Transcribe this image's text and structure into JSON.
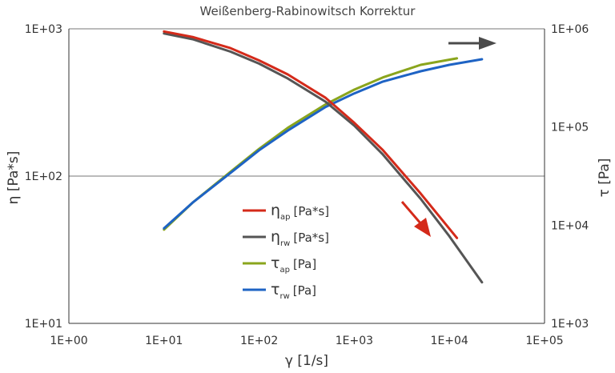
{
  "chart_data": {
    "type": "line",
    "title": "Weißenberg-Rabinowitsch Korrektur",
    "xlabel": "γ [1/s]",
    "ylabel_left": "η [Pa*s]",
    "ylabel_right": "τ [Pa]",
    "x_scale": "log",
    "y_left_scale": "log",
    "y_right_scale": "log",
    "xlim": [
      1,
      100000
    ],
    "ylim_left": [
      10,
      1000
    ],
    "ylim_right": [
      1000,
      1000000
    ],
    "x_ticks": [
      "1E+00",
      "1E+01",
      "1E+02",
      "1E+03",
      "1E+04",
      "1E+05"
    ],
    "y_left_ticks": [
      "1E+01",
      "1E+02",
      "1E+03"
    ],
    "y_right_ticks": [
      "1E+03",
      "1E+04",
      "1E+05",
      "1E+06"
    ],
    "grid": "horizontal at 1E+02 and 1E+03",
    "legend_position": "center",
    "series": [
      {
        "name": "η_ap [Pa*s]",
        "axis": "left",
        "color": "#d42a1a",
        "x": [
          10,
          20,
          50,
          100,
          200,
          500,
          1000,
          2000,
          5000,
          12000
        ],
        "y": [
          960,
          880,
          740,
          610,
          490,
          340,
          230,
          150,
          76,
          38
        ]
      },
      {
        "name": "η_rw [Pa*s]",
        "axis": "left",
        "color": "#555555",
        "x": [
          10,
          20,
          50,
          100,
          200,
          500,
          1000,
          2000,
          5000,
          10000,
          22000
        ],
        "y": [
          930,
          850,
          700,
          580,
          460,
          320,
          220,
          140,
          70,
          39,
          19
        ]
      },
      {
        "name": "τ_ap [Pa]",
        "axis": "right",
        "color": "#8aa51c",
        "x": [
          10,
          20,
          50,
          100,
          200,
          500,
          1000,
          2000,
          5000,
          12000
        ],
        "y": [
          9000,
          17000,
          35000,
          60000,
          98000,
          170000,
          240000,
          320000,
          430000,
          500000
        ]
      },
      {
        "name": "τ_rw [Pa]",
        "axis": "right",
        "color": "#1e63c4",
        "x": [
          10,
          20,
          50,
          100,
          200,
          500,
          1000,
          2000,
          5000,
          10000,
          22000
        ],
        "y": [
          9300,
          17000,
          34000,
          58000,
          92000,
          160000,
          220000,
          290000,
          370000,
          430000,
          490000
        ]
      }
    ],
    "legend": [
      {
        "symbol": "η",
        "sub": "ap",
        "unit": "[Pa*s]",
        "color": "#d42a1a"
      },
      {
        "symbol": "η",
        "sub": "rw",
        "unit": "[Pa*s]",
        "color": "#555555"
      },
      {
        "symbol": "τ",
        "sub": "ap",
        "unit": "[Pa]",
        "color": "#8aa51c"
      },
      {
        "symbol": "τ",
        "sub": "rw",
        "unit": "[Pa]",
        "color": "#1e63c4"
      }
    ],
    "annotations": [
      {
        "type": "arrow",
        "direction": "right",
        "color": "#4a4a4a",
        "meaning": "τ curves read on right axis"
      },
      {
        "type": "arrow",
        "direction": "down-right",
        "color": "#d42a1a",
        "meaning": "η curves read on left axis"
      }
    ]
  }
}
